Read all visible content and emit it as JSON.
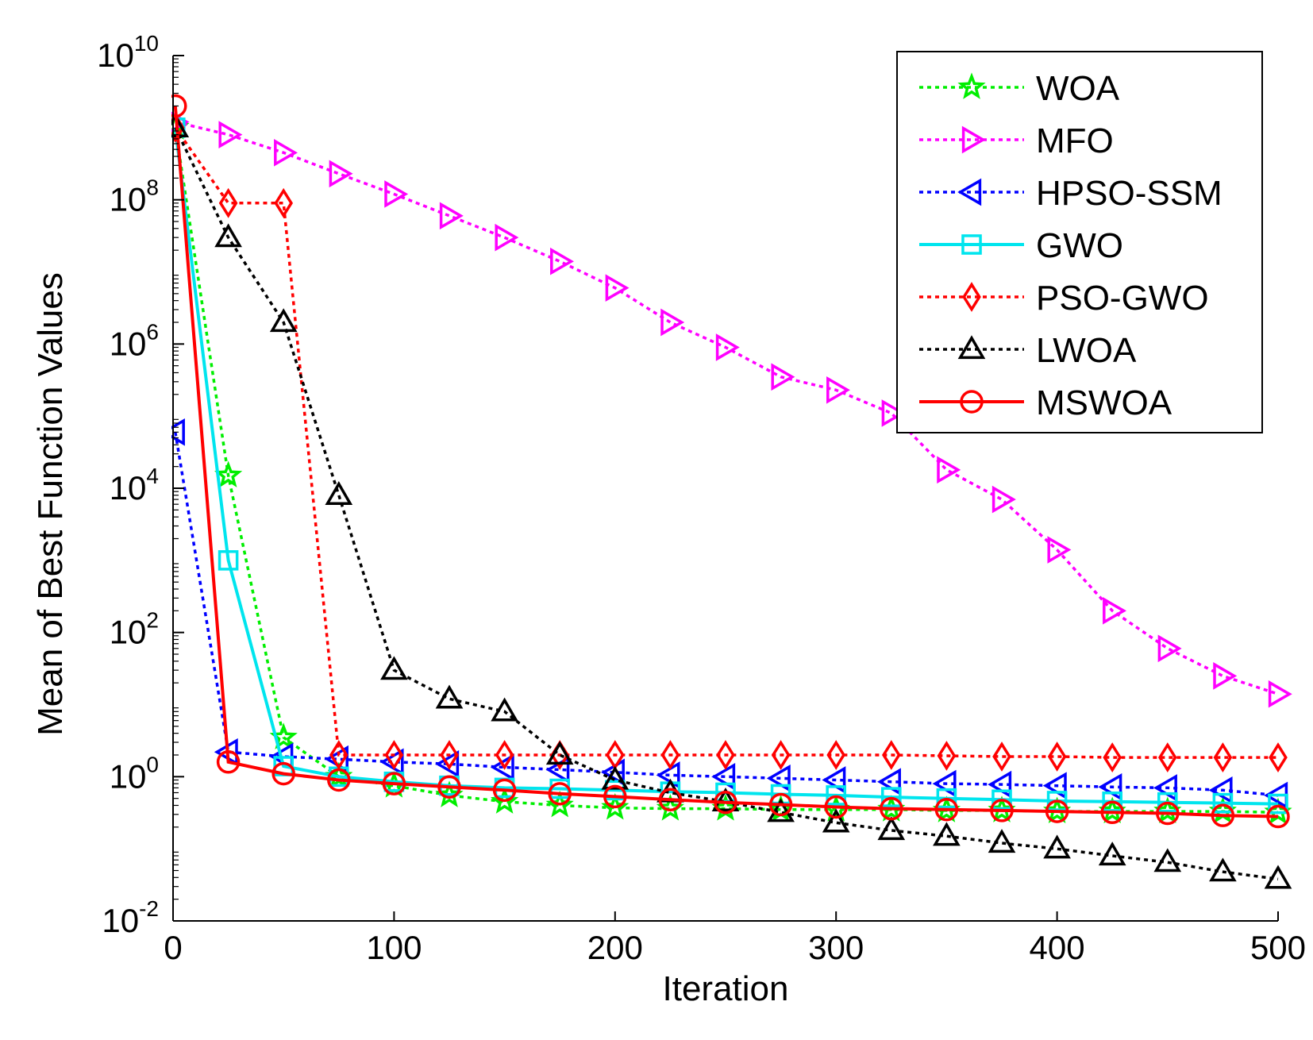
{
  "chart_data": {
    "type": "line",
    "title": "",
    "xlabel": "Iteration",
    "ylabel": "Mean of Best Function Values",
    "xlim": [
      0,
      500
    ],
    "ylim": [
      0.01,
      10000000000
    ],
    "yscale": "log",
    "grid": false,
    "legend_position": "top-right",
    "xticks": [
      0,
      100,
      200,
      300,
      400,
      500
    ],
    "yticks": [
      {
        "value": 0.01,
        "base": "10",
        "exp": "-2"
      },
      {
        "value": 1,
        "base": "10",
        "exp": "0"
      },
      {
        "value": 100,
        "base": "10",
        "exp": "2"
      },
      {
        "value": 10000,
        "base": "10",
        "exp": "4"
      },
      {
        "value": 1000000,
        "base": "10",
        "exp": "6"
      },
      {
        "value": 100000000,
        "base": "10",
        "exp": "8"
      },
      {
        "value": 10000000000,
        "base": "10",
        "exp": "10"
      }
    ],
    "x": [
      1,
      25,
      50,
      75,
      100,
      125,
      150,
      175,
      200,
      225,
      250,
      275,
      300,
      325,
      350,
      375,
      400,
      425,
      450,
      475,
      500
    ],
    "series": [
      {
        "name": "WOA",
        "color": "#00ee00",
        "dash": "dot",
        "marker": "star",
        "values": [
          1000000000,
          15000,
          3.5,
          1.0,
          0.75,
          0.55,
          0.45,
          0.4,
          0.37,
          0.36,
          0.36,
          0.35,
          0.35,
          0.35,
          0.34,
          0.34,
          0.33,
          0.33,
          0.33,
          0.33,
          0.32
        ]
      },
      {
        "name": "MFO",
        "color": "#ff00ff",
        "dash": "dot",
        "marker": "triangle-right",
        "values": [
          1200000000,
          800000000,
          450000000,
          230000000,
          120000000,
          60000000,
          30000000,
          14000000,
          6000000,
          2000000,
          900000,
          350000,
          230000,
          110000,
          18000,
          7000,
          1400,
          200,
          60,
          25,
          14
        ]
      },
      {
        "name": "HPSO-SSM",
        "color": "#0000ff",
        "dash": "dot",
        "marker": "triangle-left",
        "values": [
          60000,
          2.2,
          1.9,
          1.75,
          1.6,
          1.5,
          1.35,
          1.25,
          1.15,
          1.05,
          1.0,
          0.95,
          0.9,
          0.85,
          0.8,
          0.78,
          0.75,
          0.72,
          0.7,
          0.65,
          0.55
        ]
      },
      {
        "name": "GWO",
        "color": "#00e5ee",
        "dash": "solid",
        "marker": "square",
        "values": [
          1000000000,
          1000,
          1.4,
          1.0,
          0.85,
          0.75,
          0.7,
          0.68,
          0.65,
          0.62,
          0.6,
          0.57,
          0.55,
          0.52,
          0.5,
          0.48,
          0.46,
          0.45,
          0.44,
          0.43,
          0.42
        ]
      },
      {
        "name": "PSO-GWO",
        "color": "#ff0000",
        "dash": "dot",
        "marker": "diamond",
        "values": [
          1000000000,
          90000000,
          90000000,
          2.0,
          2.0,
          2.0,
          2.0,
          2.0,
          2.0,
          2.0,
          2.0,
          2.0,
          2.0,
          2.0,
          1.95,
          1.9,
          1.9,
          1.85,
          1.85,
          1.85,
          1.85
        ]
      },
      {
        "name": "LWOA",
        "color": "#000000",
        "dash": "dot",
        "marker": "triangle-up",
        "values": [
          1000000000,
          30000000,
          2000000,
          8000,
          30,
          12,
          8,
          2.0,
          0.9,
          0.6,
          0.45,
          0.32,
          0.23,
          0.18,
          0.15,
          0.12,
          0.1,
          0.08,
          0.065,
          0.048,
          0.038
        ]
      },
      {
        "name": "MSWOA",
        "color": "#ff0000",
        "dash": "solid",
        "marker": "circle",
        "values": [
          2000000000,
          1.6,
          1.1,
          0.9,
          0.8,
          0.72,
          0.65,
          0.58,
          0.53,
          0.48,
          0.44,
          0.41,
          0.38,
          0.36,
          0.35,
          0.34,
          0.33,
          0.32,
          0.31,
          0.29,
          0.28
        ]
      }
    ]
  }
}
